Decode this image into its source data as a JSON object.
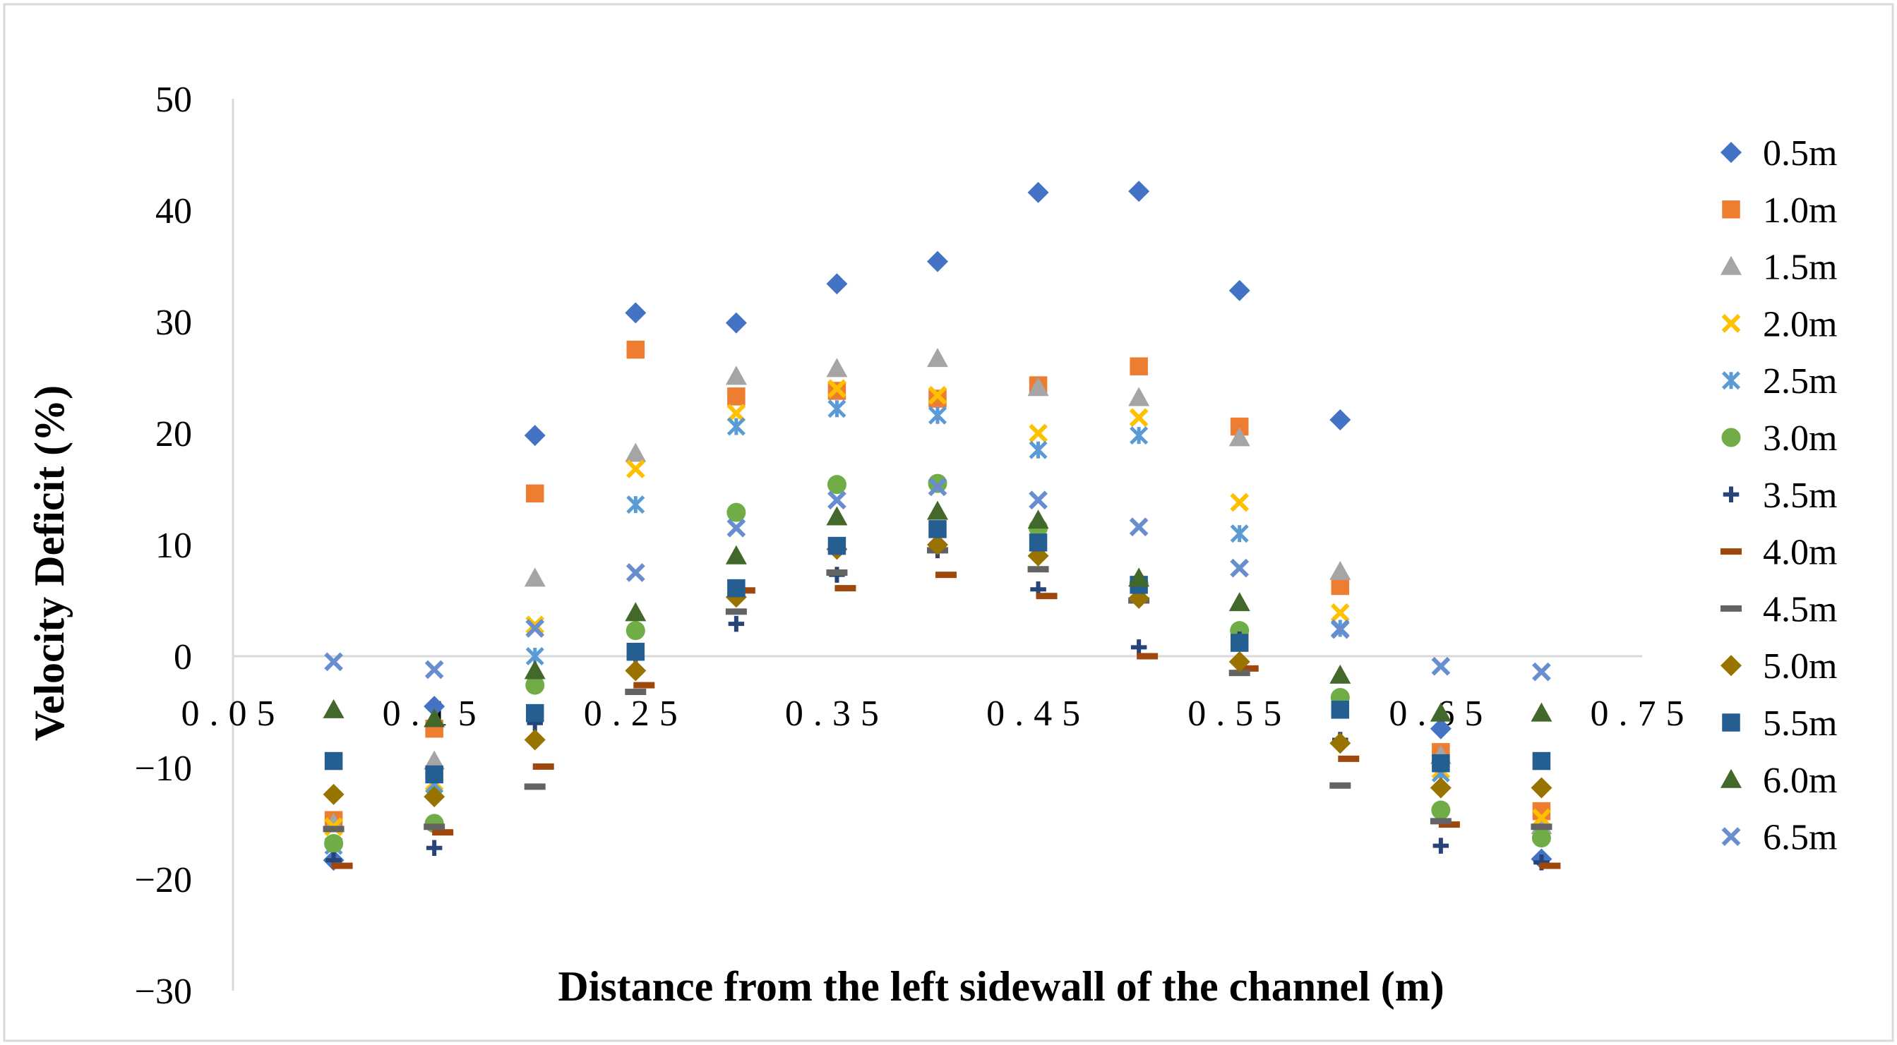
{
  "chart_data": {
    "type": "scatter",
    "title": "",
    "xlabel": "Distance from the left sidewall of the channel (m)",
    "ylabel": "Velocity Deficit (%)",
    "xlim": [
      0.05,
      0.75
    ],
    "ylim": [
      -30,
      50
    ],
    "x_ticks": [
      "0.05",
      "0.15",
      "0.25",
      "0.35",
      "0.45",
      "0.55",
      "0.65",
      "0.75"
    ],
    "y_ticks": [
      "50",
      "40",
      "30",
      "20",
      "10",
      "0",
      "−10",
      "−20",
      "−30"
    ],
    "x": [
      0.1,
      0.15,
      0.2,
      0.25,
      0.3,
      0.35,
      0.4,
      0.45,
      0.5,
      0.55,
      0.6,
      0.65,
      0.7
    ],
    "legend_position": "right",
    "grid": false,
    "series": [
      {
        "name": "0.5m",
        "marker": "diamond",
        "color": "#4472C4",
        "values": [
          -18.3,
          -4.5,
          19.8,
          30.8,
          29.9,
          33.4,
          35.4,
          41.6,
          41.7,
          32.8,
          21.2,
          -6.5,
          -18.2
        ]
      },
      {
        "name": "1.0m",
        "marker": "square",
        "color": "#ED7D31",
        "values": [
          -14.7,
          -6.5,
          14.6,
          27.5,
          23.3,
          23.8,
          23.1,
          24.3,
          26.0,
          20.6,
          6.3,
          -8.6,
          -13.9
        ]
      },
      {
        "name": "1.5m",
        "marker": "triangle",
        "color": "#A5A5A5",
        "values": [
          -15.0,
          -9.4,
          7.0,
          18.2,
          25.1,
          25.8,
          26.7,
          24.1,
          23.2,
          19.6,
          7.6,
          -8.9,
          -15.2
        ]
      },
      {
        "name": "2.0m",
        "marker": "x",
        "color": "#FFC000",
        "values": [
          -15.3,
          -11.3,
          2.8,
          16.8,
          21.8,
          24.0,
          23.4,
          20.0,
          21.4,
          13.8,
          3.9,
          -10.2,
          -14.5
        ]
      },
      {
        "name": "2.5m",
        "marker": "star",
        "color": "#5B9BD5",
        "values": [
          -17.0,
          -11.5,
          0.0,
          13.6,
          20.6,
          22.2,
          21.6,
          18.5,
          19.8,
          11.0,
          2.5,
          -10.5,
          -16.0
        ]
      },
      {
        "name": "3.0m",
        "marker": "circle",
        "color": "#70AD47",
        "values": [
          -16.8,
          -15.0,
          -2.6,
          2.3,
          12.9,
          15.4,
          15.5,
          11.5,
          6.5,
          2.3,
          -3.7,
          -13.8,
          -16.3
        ]
      },
      {
        "name": "3.5m",
        "marker": "plus",
        "color": "#264478",
        "values": [
          -18.3,
          -17.2,
          -6.0,
          0.0,
          2.9,
          7.3,
          9.5,
          6.0,
          0.8,
          1.5,
          -7.5,
          -17.0,
          -18.5
        ]
      },
      {
        "name": "4.0m",
        "marker": "dash",
        "color": "#9E480E",
        "values": [
          -18.8,
          -15.8,
          -9.9,
          -2.6,
          5.9,
          6.1,
          7.3,
          5.4,
          0.0,
          -1.1,
          -9.2,
          -15.1,
          -18.8
        ]
      },
      {
        "name": "4.5m",
        "marker": "dash",
        "color": "#636363",
        "values": [
          -15.5,
          -15.3,
          -11.7,
          -3.2,
          4.0,
          7.5,
          9.5,
          7.8,
          5.0,
          -1.5,
          -11.6,
          -14.8,
          -15.3
        ]
      },
      {
        "name": "5.0m",
        "marker": "diamond",
        "color": "#997300",
        "values": [
          -12.4,
          -12.6,
          -7.5,
          -1.3,
          5.3,
          9.6,
          10.0,
          9.0,
          5.2,
          -0.5,
          -7.8,
          -11.8,
          -11.8
        ]
      },
      {
        "name": "5.5m",
        "marker": "square",
        "color": "#255E91",
        "values": [
          -9.4,
          -10.6,
          -5.1,
          0.4,
          6.1,
          9.9,
          11.4,
          10.2,
          6.4,
          1.2,
          -4.8,
          -9.6,
          -9.4
        ]
      },
      {
        "name": "6.0m",
        "marker": "triangle",
        "color": "#43682B",
        "values": [
          -4.8,
          -5.6,
          -1.3,
          3.9,
          9.0,
          12.5,
          13.0,
          12.2,
          7.0,
          4.8,
          -1.7,
          -5.1,
          -5.1
        ]
      },
      {
        "name": "6.5m",
        "marker": "x",
        "color": "#698ED0",
        "values": [
          -0.5,
          -1.2,
          2.5,
          7.5,
          11.5,
          14.0,
          15.2,
          14.0,
          11.6,
          7.9,
          2.4,
          -0.9,
          -1.4
        ]
      }
    ]
  }
}
